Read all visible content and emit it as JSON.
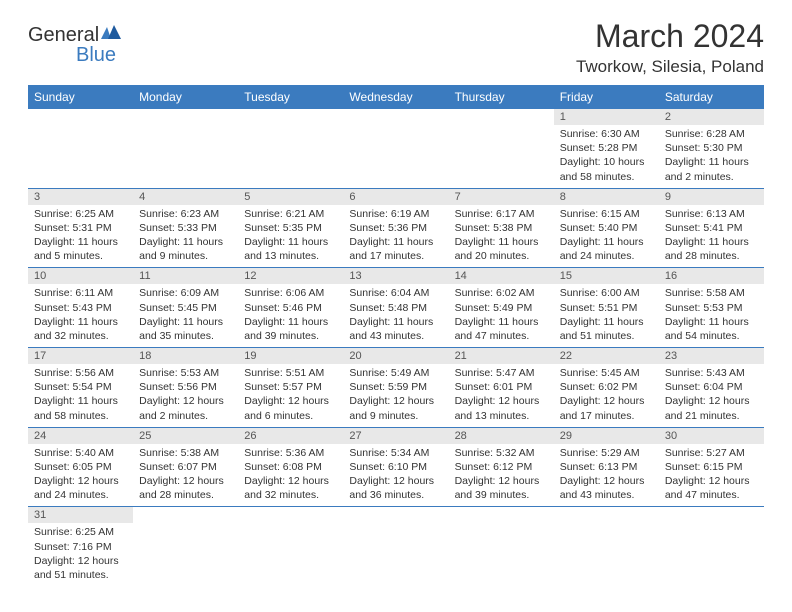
{
  "brand": {
    "text1": "General",
    "text2": "Blue"
  },
  "title": "March 2024",
  "location": "Tworkow, Silesia, Poland",
  "colors": {
    "header_bg": "#3b7bbf",
    "header_fg": "#ffffff",
    "daynum_bg": "#e8e8e8",
    "border": "#3b7bbf",
    "text": "#333333"
  },
  "weekdays": [
    "Sunday",
    "Monday",
    "Tuesday",
    "Wednesday",
    "Thursday",
    "Friday",
    "Saturday"
  ],
  "weeks": [
    [
      null,
      null,
      null,
      null,
      null,
      {
        "n": "1",
        "sr": "Sunrise: 6:30 AM",
        "ss": "Sunset: 5:28 PM",
        "d1": "Daylight: 10 hours",
        "d2": "and 58 minutes."
      },
      {
        "n": "2",
        "sr": "Sunrise: 6:28 AM",
        "ss": "Sunset: 5:30 PM",
        "d1": "Daylight: 11 hours",
        "d2": "and 2 minutes."
      }
    ],
    [
      {
        "n": "3",
        "sr": "Sunrise: 6:25 AM",
        "ss": "Sunset: 5:31 PM",
        "d1": "Daylight: 11 hours",
        "d2": "and 5 minutes."
      },
      {
        "n": "4",
        "sr": "Sunrise: 6:23 AM",
        "ss": "Sunset: 5:33 PM",
        "d1": "Daylight: 11 hours",
        "d2": "and 9 minutes."
      },
      {
        "n": "5",
        "sr": "Sunrise: 6:21 AM",
        "ss": "Sunset: 5:35 PM",
        "d1": "Daylight: 11 hours",
        "d2": "and 13 minutes."
      },
      {
        "n": "6",
        "sr": "Sunrise: 6:19 AM",
        "ss": "Sunset: 5:36 PM",
        "d1": "Daylight: 11 hours",
        "d2": "and 17 minutes."
      },
      {
        "n": "7",
        "sr": "Sunrise: 6:17 AM",
        "ss": "Sunset: 5:38 PM",
        "d1": "Daylight: 11 hours",
        "d2": "and 20 minutes."
      },
      {
        "n": "8",
        "sr": "Sunrise: 6:15 AM",
        "ss": "Sunset: 5:40 PM",
        "d1": "Daylight: 11 hours",
        "d2": "and 24 minutes."
      },
      {
        "n": "9",
        "sr": "Sunrise: 6:13 AM",
        "ss": "Sunset: 5:41 PM",
        "d1": "Daylight: 11 hours",
        "d2": "and 28 minutes."
      }
    ],
    [
      {
        "n": "10",
        "sr": "Sunrise: 6:11 AM",
        "ss": "Sunset: 5:43 PM",
        "d1": "Daylight: 11 hours",
        "d2": "and 32 minutes."
      },
      {
        "n": "11",
        "sr": "Sunrise: 6:09 AM",
        "ss": "Sunset: 5:45 PM",
        "d1": "Daylight: 11 hours",
        "d2": "and 35 minutes."
      },
      {
        "n": "12",
        "sr": "Sunrise: 6:06 AM",
        "ss": "Sunset: 5:46 PM",
        "d1": "Daylight: 11 hours",
        "d2": "and 39 minutes."
      },
      {
        "n": "13",
        "sr": "Sunrise: 6:04 AM",
        "ss": "Sunset: 5:48 PM",
        "d1": "Daylight: 11 hours",
        "d2": "and 43 minutes."
      },
      {
        "n": "14",
        "sr": "Sunrise: 6:02 AM",
        "ss": "Sunset: 5:49 PM",
        "d1": "Daylight: 11 hours",
        "d2": "and 47 minutes."
      },
      {
        "n": "15",
        "sr": "Sunrise: 6:00 AM",
        "ss": "Sunset: 5:51 PM",
        "d1": "Daylight: 11 hours",
        "d2": "and 51 minutes."
      },
      {
        "n": "16",
        "sr": "Sunrise: 5:58 AM",
        "ss": "Sunset: 5:53 PM",
        "d1": "Daylight: 11 hours",
        "d2": "and 54 minutes."
      }
    ],
    [
      {
        "n": "17",
        "sr": "Sunrise: 5:56 AM",
        "ss": "Sunset: 5:54 PM",
        "d1": "Daylight: 11 hours",
        "d2": "and 58 minutes."
      },
      {
        "n": "18",
        "sr": "Sunrise: 5:53 AM",
        "ss": "Sunset: 5:56 PM",
        "d1": "Daylight: 12 hours",
        "d2": "and 2 minutes."
      },
      {
        "n": "19",
        "sr": "Sunrise: 5:51 AM",
        "ss": "Sunset: 5:57 PM",
        "d1": "Daylight: 12 hours",
        "d2": "and 6 minutes."
      },
      {
        "n": "20",
        "sr": "Sunrise: 5:49 AM",
        "ss": "Sunset: 5:59 PM",
        "d1": "Daylight: 12 hours",
        "d2": "and 9 minutes."
      },
      {
        "n": "21",
        "sr": "Sunrise: 5:47 AM",
        "ss": "Sunset: 6:01 PM",
        "d1": "Daylight: 12 hours",
        "d2": "and 13 minutes."
      },
      {
        "n": "22",
        "sr": "Sunrise: 5:45 AM",
        "ss": "Sunset: 6:02 PM",
        "d1": "Daylight: 12 hours",
        "d2": "and 17 minutes."
      },
      {
        "n": "23",
        "sr": "Sunrise: 5:43 AM",
        "ss": "Sunset: 6:04 PM",
        "d1": "Daylight: 12 hours",
        "d2": "and 21 minutes."
      }
    ],
    [
      {
        "n": "24",
        "sr": "Sunrise: 5:40 AM",
        "ss": "Sunset: 6:05 PM",
        "d1": "Daylight: 12 hours",
        "d2": "and 24 minutes."
      },
      {
        "n": "25",
        "sr": "Sunrise: 5:38 AM",
        "ss": "Sunset: 6:07 PM",
        "d1": "Daylight: 12 hours",
        "d2": "and 28 minutes."
      },
      {
        "n": "26",
        "sr": "Sunrise: 5:36 AM",
        "ss": "Sunset: 6:08 PM",
        "d1": "Daylight: 12 hours",
        "d2": "and 32 minutes."
      },
      {
        "n": "27",
        "sr": "Sunrise: 5:34 AM",
        "ss": "Sunset: 6:10 PM",
        "d1": "Daylight: 12 hours",
        "d2": "and 36 minutes."
      },
      {
        "n": "28",
        "sr": "Sunrise: 5:32 AM",
        "ss": "Sunset: 6:12 PM",
        "d1": "Daylight: 12 hours",
        "d2": "and 39 minutes."
      },
      {
        "n": "29",
        "sr": "Sunrise: 5:29 AM",
        "ss": "Sunset: 6:13 PM",
        "d1": "Daylight: 12 hours",
        "d2": "and 43 minutes."
      },
      {
        "n": "30",
        "sr": "Sunrise: 5:27 AM",
        "ss": "Sunset: 6:15 PM",
        "d1": "Daylight: 12 hours",
        "d2": "and 47 minutes."
      }
    ],
    [
      {
        "n": "31",
        "sr": "Sunrise: 6:25 AM",
        "ss": "Sunset: 7:16 PM",
        "d1": "Daylight: 12 hours",
        "d2": "and 51 minutes."
      },
      null,
      null,
      null,
      null,
      null,
      null
    ]
  ]
}
